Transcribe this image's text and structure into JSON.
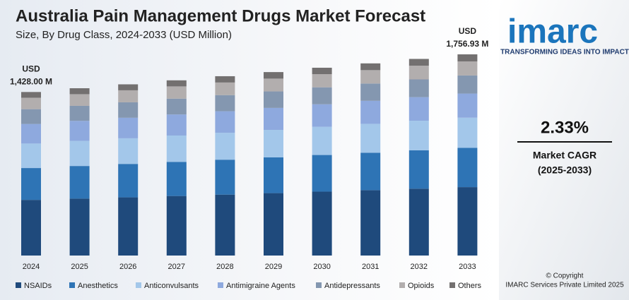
{
  "chart_data": {
    "type": "stacked-bar",
    "title": "Australia Pain Management Drugs Market Forecast",
    "subtitle": "Size, By Drug Class, 2024-2033 (USD Million)",
    "categories": [
      "2024",
      "2025",
      "2026",
      "2027",
      "2028",
      "2029",
      "2030",
      "2031",
      "2032",
      "2033"
    ],
    "series": [
      {
        "name": "NSAIDs",
        "color": "#1f4a7c",
        "values": [
          486,
          497,
          508,
          520,
          532,
          545,
          558,
          571,
          584,
          597.4
        ]
      },
      {
        "name": "Anesthetics",
        "color": "#2e74b5",
        "values": [
          278,
          285,
          292,
          298,
          305,
          312,
          320,
          327,
          335,
          342.6
        ]
      },
      {
        "name": "Anticonvulsants",
        "color": "#a3c7ea",
        "values": [
          214,
          219,
          224,
          230,
          235,
          240,
          246,
          252,
          258,
          263.5
        ]
      },
      {
        "name": "Antimigraine Agents",
        "color": "#8ea9de",
        "values": [
          171,
          175,
          179,
          184,
          188,
          192,
          197,
          201,
          206,
          210.8
        ]
      },
      {
        "name": "Antidepressants",
        "color": "#8497b0",
        "values": [
          129,
          131,
          135,
          138,
          141,
          144,
          148,
          151,
          155,
          158.1
        ]
      },
      {
        "name": "Opioids",
        "color": "#b2aeae",
        "values": [
          100,
          102,
          105,
          107,
          110,
          112,
          115,
          117,
          120,
          123.0
        ]
      },
      {
        "name": "Others",
        "color": "#737070",
        "values": [
          50,
          52,
          52,
          53,
          55,
          57,
          56,
          59,
          59,
          61.53
        ]
      }
    ],
    "ylim": [
      0,
      1800
    ],
    "annotations": [
      {
        "category": "2024",
        "unit": "USD",
        "label": "1,428.00 M"
      },
      {
        "category": "2033",
        "unit": "USD",
        "label": "1,756.93 M"
      }
    ]
  },
  "side_panel": {
    "logo": "imarc",
    "tagline": "TRANSFORMING IDEAS INTO IMPACT",
    "cagr": "2.33%",
    "cagr_label": "Market CAGR",
    "cagr_period": "(2025-2033)",
    "copyright": "© Copyright",
    "company": "IMARC Services Private Limited 2025"
  }
}
